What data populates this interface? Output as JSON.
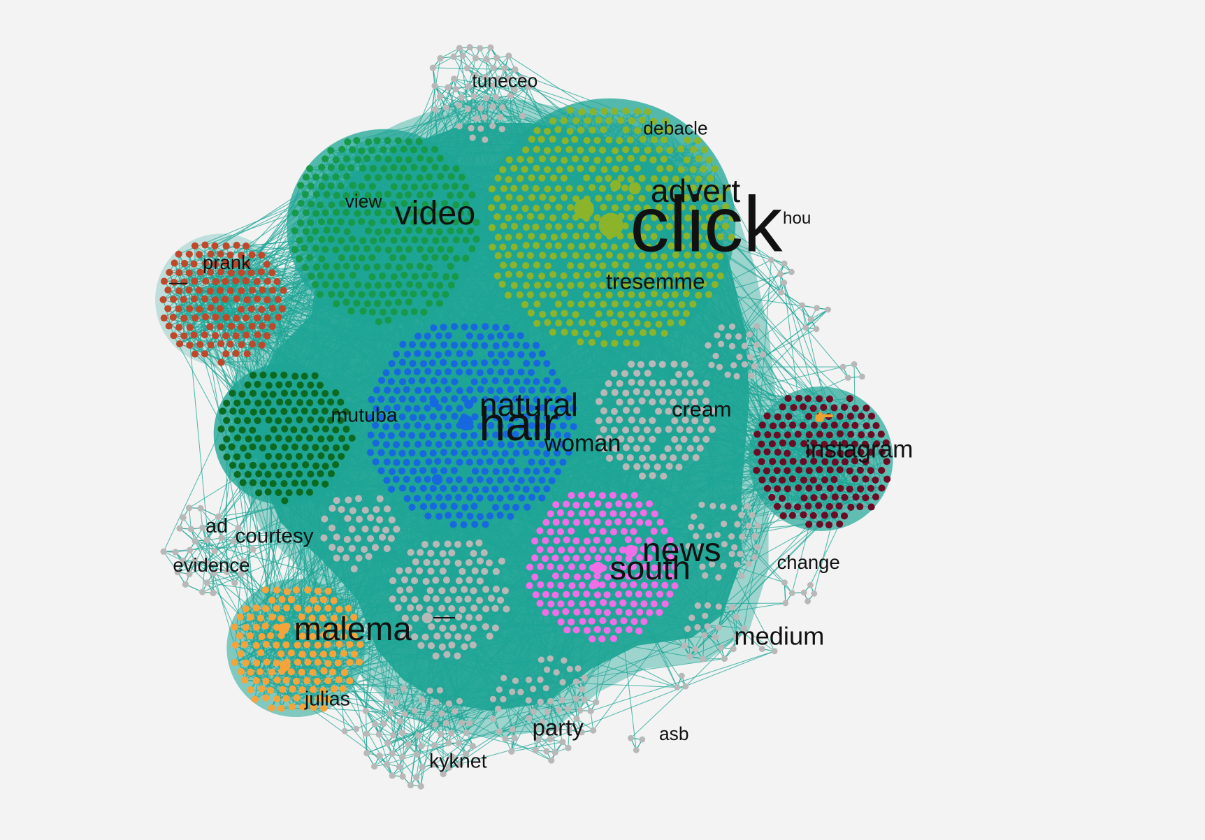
{
  "network": {
    "labels": {
      "tuneceo": "tuneceo",
      "debacle": "debacle",
      "advert": "advert",
      "click": "click",
      "hou": "hou",
      "view": "view",
      "video": "video",
      "prank": "prank",
      "dash_left": "—",
      "tresemme": "tresemme",
      "natural": "natural",
      "hair": "hair",
      "woman": "woman",
      "mutuba": "mutuba",
      "cream": "cream",
      "instagram": "instagram",
      "ad": "ad",
      "courtesy": "courtesy",
      "evidence": "evidence",
      "news": "news",
      "south": "south",
      "change": "change",
      "malema": "malema",
      "dash_center": "—",
      "medium": "medium",
      "julias": "julias",
      "party": "party",
      "asb": "asb",
      "kyknet": "kyknet"
    },
    "colors": {
      "background": "#f3f3f3",
      "edge": "#1fa595",
      "node_grey": "#b8b8b8",
      "olive": "#8cb42b",
      "green": "#17994a",
      "red": "#c0472a",
      "dark_green": "#0c6a20",
      "blue": "#1768df",
      "maroon": "#6c0b24",
      "pink": "#f06ee8",
      "orange": "#f6a43a",
      "label": "#111111",
      "icon": "#f3a12c"
    },
    "icons": {
      "marker": "pointing-hand-icon"
    }
  }
}
